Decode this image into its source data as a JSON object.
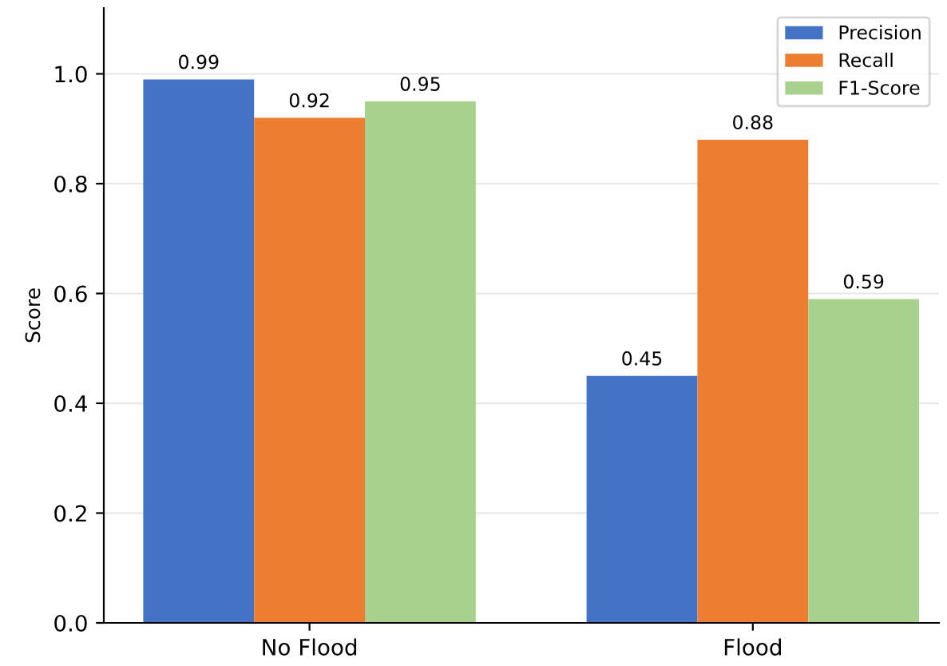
{
  "chart_data": {
    "type": "bar",
    "ylabel": "Score",
    "categories": [
      "No Flood",
      "Flood"
    ],
    "series": [
      {
        "name": "Precision",
        "color": "#4472c4",
        "values": [
          0.99,
          0.45
        ]
      },
      {
        "name": "Recall",
        "color": "#ed7d31",
        "values": [
          0.92,
          0.88
        ]
      },
      {
        "name": "F1-Score",
        "color": "#a9d18e",
        "values": [
          0.95,
          0.59
        ]
      }
    ],
    "ylim": [
      0,
      1.12
    ],
    "yticks": [
      {
        "value": 0,
        "label": "0.0"
      },
      {
        "value": 0.2,
        "label": "0.2"
      },
      {
        "value": 0.4,
        "label": "0.4"
      },
      {
        "value": 0.6,
        "label": "0.6"
      },
      {
        "value": 0.8,
        "label": "0.8"
      },
      {
        "value": 1.0,
        "label": "1.0"
      }
    ],
    "grid": "y",
    "legend": "top right",
    "data_labels": true
  }
}
